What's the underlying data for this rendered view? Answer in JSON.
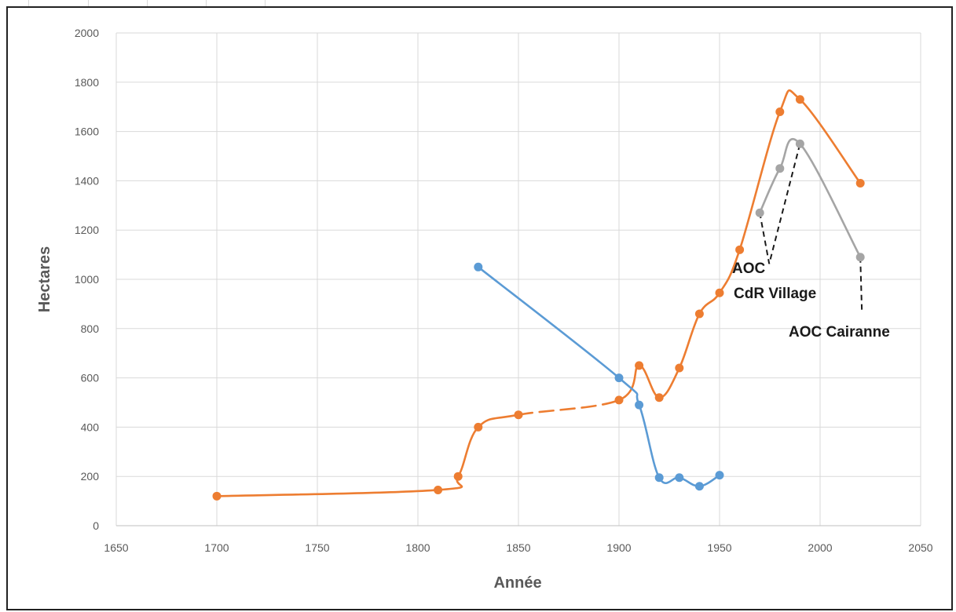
{
  "chart_data": {
    "type": "line",
    "title": "",
    "xlabel": "Année",
    "ylabel": "Hectares",
    "xlim": [
      1650,
      2050
    ],
    "ylim": [
      0,
      2000
    ],
    "xticks": [
      1650,
      1700,
      1750,
      1800,
      1850,
      1900,
      1950,
      2000,
      2050
    ],
    "yticks": [
      0,
      200,
      400,
      600,
      800,
      1000,
      1200,
      1400,
      1600,
      1800,
      2000
    ],
    "grid": true,
    "legend": "none",
    "series": [
      {
        "color": "#ed7d31",
        "points": [
          [
            1700,
            120
          ],
          [
            1810,
            145
          ],
          [
            1820,
            200
          ],
          [
            1830,
            400
          ],
          [
            1850,
            450
          ],
          [
            1900,
            510
          ],
          [
            1910,
            650
          ],
          [
            1920,
            520
          ],
          [
            1930,
            640
          ],
          [
            1940,
            860
          ],
          [
            1950,
            945
          ],
          [
            1960,
            1120
          ],
          [
            1980,
            1680
          ],
          [
            1990,
            1730
          ],
          [
            2020,
            1390
          ]
        ],
        "dashed_between": [
          [
            1850,
            1900
          ]
        ]
      },
      {
        "color": "#5b9bd5",
        "points": [
          [
            1830,
            1050
          ],
          [
            1900,
            600
          ],
          [
            1910,
            490
          ],
          [
            1920,
            195
          ],
          [
            1930,
            195
          ],
          [
            1940,
            160
          ],
          [
            1950,
            205
          ]
        ]
      },
      {
        "color": "#a5a5a5",
        "points": [
          [
            1970,
            1270
          ],
          [
            1980,
            1450
          ],
          [
            1990,
            1550
          ],
          [
            2020,
            1090
          ]
        ]
      }
    ],
    "annotations": [
      {
        "lines": [
          "AOC",
          "CdR Village"
        ]
      },
      {
        "lines": [
          "AOC Cairanne"
        ]
      }
    ]
  }
}
